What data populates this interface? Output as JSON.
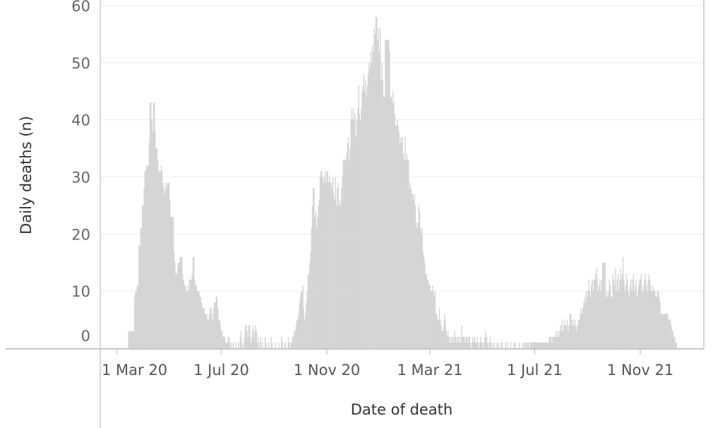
{
  "chart_data": {
    "type": "bar",
    "x_label": "Date of death",
    "y_label": "Daily deaths (n)",
    "color": "#d4d4d4",
    "grid": true,
    "ylim": [
      0,
      60
    ],
    "yticks": [
      0,
      10,
      20,
      30,
      40,
      50,
      60
    ],
    "xlim": [
      "2020-02-11",
      "2022-01-14"
    ],
    "xticks": [
      {
        "value": "2020-03-01",
        "label": "1 Mar 20"
      },
      {
        "value": "2020-07-01",
        "label": "1 Jul 20"
      },
      {
        "value": "2020-11-01",
        "label": "1 Nov 20"
      },
      {
        "value": "2021-03-01",
        "label": "1 Mar 21"
      },
      {
        "value": "2021-07-01",
        "label": "1 Jul 21"
      },
      {
        "value": "2021-11-01",
        "label": "1 Nov 21"
      }
    ],
    "x": [
      "2020-03-15",
      "2020-03-16",
      "2020-03-17",
      "2020-03-18",
      "2020-03-19",
      "2020-03-20",
      "2020-03-21",
      "2020-03-22",
      "2020-03-23",
      "2020-03-24",
      "2020-03-25",
      "2020-03-26",
      "2020-03-27",
      "2020-03-28",
      "2020-03-29",
      "2020-03-30",
      "2020-03-31",
      "2020-04-01",
      "2020-04-02",
      "2020-04-03",
      "2020-04-04",
      "2020-04-05",
      "2020-04-06",
      "2020-04-07",
      "2020-04-08",
      "2020-04-09",
      "2020-04-10",
      "2020-04-11",
      "2020-04-12",
      "2020-04-13",
      "2020-04-14",
      "2020-04-15",
      "2020-04-16",
      "2020-04-17",
      "2020-04-18",
      "2020-04-19",
      "2020-04-20",
      "2020-04-21",
      "2020-04-22",
      "2020-04-23",
      "2020-04-24",
      "2020-04-25",
      "2020-04-26",
      "2020-04-27",
      "2020-04-28",
      "2020-04-29",
      "2020-04-30",
      "2020-05-01",
      "2020-05-02",
      "2020-05-03",
      "2020-05-04",
      "2020-05-05",
      "2020-05-06",
      "2020-05-07",
      "2020-05-08",
      "2020-05-09",
      "2020-05-10",
      "2020-05-11",
      "2020-05-12",
      "2020-05-13",
      "2020-05-14",
      "2020-05-15",
      "2020-05-16",
      "2020-05-17",
      "2020-05-18",
      "2020-05-19",
      "2020-05-20",
      "2020-05-21",
      "2020-05-22",
      "2020-05-23",
      "2020-05-24",
      "2020-05-25",
      "2020-05-26",
      "2020-05-27",
      "2020-05-28",
      "2020-05-29",
      "2020-05-30",
      "2020-05-31",
      "2020-06-01",
      "2020-06-02",
      "2020-06-03",
      "2020-06-04",
      "2020-06-05",
      "2020-06-06",
      "2020-06-07",
      "2020-06-08",
      "2020-06-09",
      "2020-06-10",
      "2020-06-11",
      "2020-06-12",
      "2020-06-13",
      "2020-06-14",
      "2020-06-15",
      "2020-06-16",
      "2020-06-17",
      "2020-06-18",
      "2020-06-19",
      "2020-06-20",
      "2020-06-21",
      "2020-06-22",
      "2020-06-23",
      "2020-06-24",
      "2020-06-25",
      "2020-06-26",
      "2020-06-27",
      "2020-06-28",
      "2020-06-29",
      "2020-06-30",
      "2020-07-01",
      "2020-07-02",
      "2020-07-03",
      "2020-07-04",
      "2020-07-05",
      "2020-07-06",
      "2020-07-07",
      "2020-07-08",
      "2020-07-09",
      "2020-07-10",
      "2020-07-11",
      "2020-07-12",
      "2020-07-13",
      "2020-07-14",
      "2020-07-15",
      "2020-07-16",
      "2020-07-17",
      "2020-07-18",
      "2020-07-19",
      "2020-07-20",
      "2020-07-21",
      "2020-07-22",
      "2020-07-23",
      "2020-07-24",
      "2020-07-25",
      "2020-07-26",
      "2020-07-27",
      "2020-07-28",
      "2020-07-29",
      "2020-07-30",
      "2020-07-31",
      "2020-08-01",
      "2020-08-02",
      "2020-08-03",
      "2020-08-04",
      "2020-08-05",
      "2020-08-06",
      "2020-08-07",
      "2020-08-08",
      "2020-08-09",
      "2020-08-10",
      "2020-08-11",
      "2020-08-12",
      "2020-08-13",
      "2020-08-14",
      "2020-08-15",
      "2020-08-16",
      "2020-08-17",
      "2020-08-18",
      "2020-08-19",
      "2020-08-20",
      "2020-08-21",
      "2020-08-22",
      "2020-08-23",
      "2020-08-24",
      "2020-08-25",
      "2020-08-26",
      "2020-08-27",
      "2020-08-28",
      "2020-08-29",
      "2020-08-30",
      "2020-08-31",
      "2020-09-01",
      "2020-09-02",
      "2020-09-03",
      "2020-09-04",
      "2020-09-05",
      "2020-09-06",
      "2020-09-07",
      "2020-09-08",
      "2020-09-09",
      "2020-09-10",
      "2020-09-11",
      "2020-09-12",
      "2020-09-13",
      "2020-09-14",
      "2020-09-15",
      "2020-09-16",
      "2020-09-17",
      "2020-09-18",
      "2020-09-19",
      "2020-09-20",
      "2020-09-21",
      "2020-09-22",
      "2020-09-23",
      "2020-09-24",
      "2020-09-25",
      "2020-09-26",
      "2020-09-27",
      "2020-09-28",
      "2020-09-29",
      "2020-09-30",
      "2020-10-01",
      "2020-10-02",
      "2020-10-03",
      "2020-10-04",
      "2020-10-05",
      "2020-10-06",
      "2020-10-07",
      "2020-10-08",
      "2020-10-09",
      "2020-10-10",
      "2020-10-11",
      "2020-10-12",
      "2020-10-13",
      "2020-10-14",
      "2020-10-15",
      "2020-10-16",
      "2020-10-17",
      "2020-10-18",
      "2020-10-19",
      "2020-10-20",
      "2020-10-21",
      "2020-10-22",
      "2020-10-23",
      "2020-10-24",
      "2020-10-25",
      "2020-10-26",
      "2020-10-27",
      "2020-10-28",
      "2020-10-29",
      "2020-10-30",
      "2020-10-31",
      "2020-11-01",
      "2020-11-02",
      "2020-11-03",
      "2020-11-04",
      "2020-11-05",
      "2020-11-06",
      "2020-11-07",
      "2020-11-08",
      "2020-11-09",
      "2020-11-10",
      "2020-11-11",
      "2020-11-12",
      "2020-11-13",
      "2020-11-14",
      "2020-11-15",
      "2020-11-16",
      "2020-11-17",
      "2020-11-18",
      "2020-11-19",
      "2020-11-20",
      "2020-11-21",
      "2020-11-22",
      "2020-11-23",
      "2020-11-24",
      "2020-11-25",
      "2020-11-26",
      "2020-11-27",
      "2020-11-28",
      "2020-11-29",
      "2020-11-30",
      "2020-12-01",
      "2020-12-02",
      "2020-12-03",
      "2020-12-04",
      "2020-12-05",
      "2020-12-06",
      "2020-12-07",
      "2020-12-08",
      "2020-12-09",
      "2020-12-10",
      "2020-12-11",
      "2020-12-12",
      "2020-12-13",
      "2020-12-14",
      "2020-12-15",
      "2020-12-16",
      "2020-12-17",
      "2020-12-18",
      "2020-12-19",
      "2020-12-20",
      "2020-12-21",
      "2020-12-22",
      "2020-12-23",
      "2020-12-24",
      "2020-12-25",
      "2020-12-26",
      "2020-12-27",
      "2020-12-28",
      "2020-12-29",
      "2020-12-30",
      "2020-12-31",
      "2021-01-01",
      "2021-01-02",
      "2021-01-03",
      "2021-01-04",
      "2021-01-05",
      "2021-01-06",
      "2021-01-07",
      "2021-01-08",
      "2021-01-09",
      "2021-01-10",
      "2021-01-11",
      "2021-01-12",
      "2021-01-13",
      "2021-01-14",
      "2021-01-15",
      "2021-01-16",
      "2021-01-17",
      "2021-01-18",
      "2021-01-19",
      "2021-01-20",
      "2021-01-21",
      "2021-01-22",
      "2021-01-23",
      "2021-01-24",
      "2021-01-25",
      "2021-01-26",
      "2021-01-27",
      "2021-01-28",
      "2021-01-29",
      "2021-01-30",
      "2021-01-31",
      "2021-02-01",
      "2021-02-02",
      "2021-02-03",
      "2021-02-04",
      "2021-02-05",
      "2021-02-06",
      "2021-02-07",
      "2021-02-08",
      "2021-02-09",
      "2021-02-10",
      "2021-02-11",
      "2021-02-12",
      "2021-02-13",
      "2021-02-14",
      "2021-02-15",
      "2021-02-16",
      "2021-02-17",
      "2021-02-18",
      "2021-02-19",
      "2021-02-20",
      "2021-02-21",
      "2021-02-22",
      "2021-02-23",
      "2021-02-24",
      "2021-02-25",
      "2021-02-26",
      "2021-02-27",
      "2021-02-28",
      "2021-03-01",
      "2021-03-02",
      "2021-03-03",
      "2021-03-04",
      "2021-03-05",
      "2021-03-06",
      "2021-03-07",
      "2021-03-08",
      "2021-03-09",
      "2021-03-10",
      "2021-03-11",
      "2021-03-12",
      "2021-03-13",
      "2021-03-14",
      "2021-03-15",
      "2021-03-16",
      "2021-03-17",
      "2021-03-18",
      "2021-03-19",
      "2021-03-20",
      "2021-03-21",
      "2021-03-22",
      "2021-03-23",
      "2021-03-24",
      "2021-03-25",
      "2021-03-26",
      "2021-03-27",
      "2021-03-28",
      "2021-03-29",
      "2021-03-30",
      "2021-03-31",
      "2021-04-01",
      "2021-04-02",
      "2021-04-03",
      "2021-04-04",
      "2021-04-05",
      "2021-04-06",
      "2021-04-07",
      "2021-04-08",
      "2021-04-09",
      "2021-04-10",
      "2021-04-11",
      "2021-04-12",
      "2021-04-13",
      "2021-04-14",
      "2021-04-15",
      "2021-04-16",
      "2021-04-17",
      "2021-04-18",
      "2021-04-19",
      "2021-04-20",
      "2021-04-21",
      "2021-04-22",
      "2021-04-23",
      "2021-04-24",
      "2021-04-25",
      "2021-04-26",
      "2021-04-27",
      "2021-04-28",
      "2021-04-29",
      "2021-04-30",
      "2021-05-01",
      "2021-05-02",
      "2021-05-03",
      "2021-05-04",
      "2021-05-05",
      "2021-05-06",
      "2021-05-07",
      "2021-05-08",
      "2021-05-09",
      "2021-05-10",
      "2021-05-11",
      "2021-05-12",
      "2021-05-13",
      "2021-05-14",
      "2021-05-15",
      "2021-05-16",
      "2021-05-17",
      "2021-05-18",
      "2021-05-19",
      "2021-05-20",
      "2021-05-21",
      "2021-05-22",
      "2021-05-23",
      "2021-05-24",
      "2021-05-25",
      "2021-05-26",
      "2021-05-27",
      "2021-05-28",
      "2021-05-29",
      "2021-05-30",
      "2021-05-31",
      "2021-06-01",
      "2021-06-02",
      "2021-06-03",
      "2021-06-04",
      "2021-06-05",
      "2021-06-06",
      "2021-06-07",
      "2021-06-08",
      "2021-06-09",
      "2021-06-10",
      "2021-06-11",
      "2021-06-12",
      "2021-06-13",
      "2021-06-14",
      "2021-06-15",
      "2021-06-16",
      "2021-06-17",
      "2021-06-18",
      "2021-06-19",
      "2021-06-20",
      "2021-06-21",
      "2021-06-22",
      "2021-06-23",
      "2021-06-24",
      "2021-06-25",
      "2021-06-26",
      "2021-06-27",
      "2021-06-28",
      "2021-06-29",
      "2021-06-30",
      "2021-07-01",
      "2021-07-02",
      "2021-07-03",
      "2021-07-04",
      "2021-07-05",
      "2021-07-06",
      "2021-07-07",
      "2021-07-08",
      "2021-07-09",
      "2021-07-10",
      "2021-07-11",
      "2021-07-12",
      "2021-07-13",
      "2021-07-14",
      "2021-07-15",
      "2021-07-16",
      "2021-07-17",
      "2021-07-18",
      "2021-07-19",
      "2021-07-20",
      "2021-07-21",
      "2021-07-22",
      "2021-07-23",
      "2021-07-24",
      "2021-07-25",
      "2021-07-26",
      "2021-07-27",
      "2021-07-28",
      "2021-07-29",
      "2021-07-30",
      "2021-07-31",
      "2021-08-01",
      "2021-08-02",
      "2021-08-03",
      "2021-08-04",
      "2021-08-05",
      "2021-08-06",
      "2021-08-07",
      "2021-08-08",
      "2021-08-09",
      "2021-08-10",
      "2021-08-11",
      "2021-08-12",
      "2021-08-13",
      "2021-08-14",
      "2021-08-15",
      "2021-08-16",
      "2021-08-17",
      "2021-08-18",
      "2021-08-19",
      "2021-08-20",
      "2021-08-21",
      "2021-08-22",
      "2021-08-23",
      "2021-08-24",
      "2021-08-25",
      "2021-08-26",
      "2021-08-27",
      "2021-08-28",
      "2021-08-29",
      "2021-08-30",
      "2021-08-31",
      "2021-09-01",
      "2021-09-02",
      "2021-09-03",
      "2021-09-04",
      "2021-09-05",
      "2021-09-06",
      "2021-09-07",
      "2021-09-08",
      "2021-09-09",
      "2021-09-10",
      "2021-09-11",
      "2021-09-12",
      "2021-09-13",
      "2021-09-14",
      "2021-09-15",
      "2021-09-16",
      "2021-09-17",
      "2021-09-18",
      "2021-09-19",
      "2021-09-20",
      "2021-09-21",
      "2021-09-22",
      "2021-09-23",
      "2021-09-24",
      "2021-09-25",
      "2021-09-26",
      "2021-09-27",
      "2021-09-28",
      "2021-09-29",
      "2021-09-30",
      "2021-10-01",
      "2021-10-02",
      "2021-10-03",
      "2021-10-04",
      "2021-10-05",
      "2021-10-06",
      "2021-10-07",
      "2021-10-08",
      "2021-10-09",
      "2021-10-10",
      "2021-10-11",
      "2021-10-12",
      "2021-10-13",
      "2021-10-14",
      "2021-10-15",
      "2021-10-16",
      "2021-10-17",
      "2021-10-18",
      "2021-10-19",
      "2021-10-20",
      "2021-10-21",
      "2021-10-22",
      "2021-10-23",
      "2021-10-24",
      "2021-10-25",
      "2021-10-26",
      "2021-10-27",
      "2021-10-28",
      "2021-10-29",
      "2021-10-30",
      "2021-10-31",
      "2021-11-01",
      "2021-11-02",
      "2021-11-03",
      "2021-11-04",
      "2021-11-05",
      "2021-11-06",
      "2021-11-07",
      "2021-11-08",
      "2021-11-09",
      "2021-11-10",
      "2021-11-11",
      "2021-11-12",
      "2021-11-13",
      "2021-11-14",
      "2021-11-15",
      "2021-11-16",
      "2021-11-17",
      "2021-11-18",
      "2021-11-19",
      "2021-11-20",
      "2021-11-21",
      "2021-11-22",
      "2021-11-23",
      "2021-11-24",
      "2021-11-25",
      "2021-11-26",
      "2021-11-27",
      "2021-11-28",
      "2021-11-29",
      "2021-11-30",
      "2021-12-01",
      "2021-12-02",
      "2021-12-03",
      "2021-12-04",
      "2021-12-05",
      "2021-12-06",
      "2021-12-07",
      "2021-12-08",
      "2021-12-09",
      "2021-12-10",
      "2021-12-11",
      "2021-12-12",
      "2021-12-13"
    ],
    "values": [
      3,
      3,
      3,
      3,
      3,
      3,
      3,
      9,
      10,
      10,
      11,
      11,
      18,
      18,
      21,
      21,
      25,
      25,
      28,
      31,
      31,
      32,
      32,
      32,
      36,
      43,
      43,
      40,
      38,
      43,
      43,
      38,
      35,
      35,
      33,
      31,
      31,
      31,
      32,
      31,
      29,
      28,
      27,
      29,
      28,
      29,
      29,
      29,
      26,
      23,
      23,
      23,
      23,
      17,
      15,
      13,
      13,
      14,
      15,
      15,
      16,
      16,
      16,
      13,
      12,
      11,
      11,
      10,
      10,
      11,
      10,
      12,
      12,
      12,
      13,
      16,
      16,
      12,
      11,
      11,
      10,
      10,
      10,
      9,
      9,
      8,
      7,
      7,
      7,
      6,
      6,
      6,
      5,
      5,
      6,
      7,
      7,
      6,
      5,
      7,
      8,
      8,
      9,
      9,
      7,
      5,
      5,
      4,
      3,
      3,
      2,
      2,
      2,
      1,
      1,
      1,
      2,
      2,
      1,
      0,
      1,
      0,
      1,
      0,
      0,
      1,
      0,
      0,
      1,
      0,
      2,
      3,
      0,
      1,
      0,
      2,
      4,
      4,
      3,
      2,
      4,
      4,
      2,
      1,
      3,
      4,
      2,
      3,
      4,
      3,
      1,
      2,
      0,
      1,
      2,
      0,
      1,
      0,
      0,
      2,
      1,
      0,
      0,
      1,
      0,
      0,
      2,
      1,
      0,
      0,
      0,
      1,
      0,
      0,
      0,
      1,
      0,
      0,
      2,
      1,
      0,
      0,
      1,
      1,
      0,
      0,
      2,
      1,
      0,
      1,
      1,
      2,
      2,
      3,
      3,
      4,
      5,
      5,
      6,
      8,
      9,
      10,
      10,
      11,
      7,
      5,
      6,
      8,
      10,
      13,
      13,
      15,
      17,
      21,
      25,
      28,
      28,
      23,
      24,
      21,
      23,
      25,
      26,
      30,
      31,
      31,
      30,
      29,
      30,
      31,
      29,
      31,
      31,
      29,
      30,
      29,
      29,
      28,
      30,
      27,
      26,
      30,
      25,
      28,
      29,
      25,
      26,
      25,
      28,
      30,
      33,
      33,
      33,
      33,
      34,
      36,
      37,
      33,
      35,
      40,
      42,
      40,
      42,
      40,
      41,
      37,
      40,
      42,
      46,
      41,
      40,
      42,
      45,
      46,
      48,
      45,
      47,
      44,
      46,
      48,
      50,
      49,
      52,
      50,
      53,
      52,
      56,
      55,
      58,
      58,
      54,
      56,
      52,
      56,
      47,
      50,
      47,
      44,
      44,
      54,
      54,
      54,
      54,
      54,
      52,
      44,
      44,
      43,
      45,
      43,
      41,
      39,
      39,
      40,
      39,
      38,
      36,
      37,
      36,
      37,
      34,
      33,
      37,
      33,
      34,
      33,
      33,
      28,
      29,
      28,
      27,
      27,
      26,
      27,
      25,
      22,
      21,
      22,
      25,
      24,
      21,
      20,
      21,
      17,
      16,
      15,
      13,
      13,
      12,
      12,
      11,
      11,
      10,
      10,
      11,
      10,
      9,
      10,
      6,
      6,
      5,
      5,
      7,
      5,
      4,
      3,
      3,
      4,
      6,
      5,
      3,
      2,
      3,
      2,
      1,
      2,
      1,
      2,
      2,
      1,
      3,
      2,
      1,
      2,
      2,
      1,
      2,
      1,
      4,
      2,
      2,
      2,
      1,
      2,
      2,
      1,
      2,
      2,
      1,
      0,
      1,
      2,
      1,
      2,
      1,
      1,
      2,
      1,
      0,
      1,
      2,
      1,
      1,
      0,
      1,
      2,
      3,
      2,
      1,
      0,
      1,
      2,
      1,
      0,
      1,
      0,
      1,
      0,
      0,
      1,
      0,
      1,
      0,
      0,
      1,
      1,
      0,
      0,
      0,
      1,
      0,
      1,
      0,
      0,
      0,
      1,
      0,
      0,
      0,
      1,
      1,
      0,
      0,
      0,
      0,
      1,
      0,
      0,
      0,
      1,
      0,
      1,
      1,
      0,
      1,
      1,
      1,
      0,
      1,
      1,
      1,
      1,
      1,
      1,
      1,
      1,
      1,
      1,
      1,
      1,
      1,
      1,
      1,
      1,
      1,
      1,
      1,
      1,
      1,
      1,
      2,
      2,
      2,
      1,
      2,
      2,
      2,
      2,
      3,
      2,
      3,
      2,
      3,
      4,
      3,
      5,
      3,
      4,
      5,
      4,
      4,
      5,
      3,
      4,
      6,
      6,
      5,
      4,
      5,
      4,
      5,
      4,
      3,
      4,
      5,
      5,
      6,
      7,
      6,
      7,
      8,
      9,
      8,
      10,
      9,
      10,
      12,
      10,
      9,
      11,
      12,
      10,
      12,
      12,
      13,
      14,
      12,
      10,
      11,
      12,
      10,
      12,
      15,
      15,
      15,
      15,
      9,
      10,
      9,
      10,
      12,
      11,
      9,
      9,
      13,
      12,
      11,
      14,
      10,
      12,
      13,
      10,
      12,
      14,
      12,
      13,
      16,
      12,
      10,
      11,
      13,
      12,
      10,
      9,
      11,
      12,
      10,
      12,
      13,
      10,
      11,
      12,
      9,
      10,
      11,
      12,
      12,
      13,
      10,
      11,
      10,
      12,
      13,
      11,
      10,
      12,
      13,
      12,
      11,
      10,
      10,
      11,
      10,
      10,
      9,
      9,
      10,
      10,
      9,
      8,
      6,
      6,
      6,
      6,
      6,
      6,
      6,
      6,
      6,
      5,
      5,
      5,
      4,
      3,
      3,
      2,
      2,
      1,
      1
    ]
  }
}
